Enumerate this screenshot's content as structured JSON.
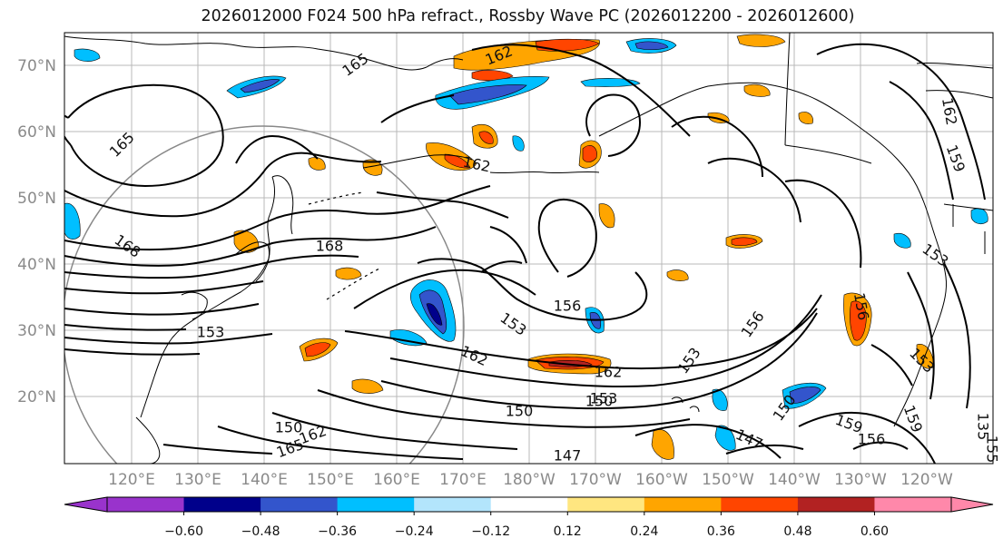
{
  "title": "2026012000 F024 500 hPa refract., Rossby Wave PC (2026012200 - 2026012600)",
  "lat_labels": [
    "70°N",
    "60°N",
    "50°N",
    "40°N",
    "30°N",
    "20°N"
  ],
  "lon_labels": [
    "120°E",
    "130°E",
    "140°E",
    "150°E",
    "160°E",
    "170°E",
    "180°W",
    "170°W",
    "160°W",
    "150°W",
    "140°W",
    "130°W",
    "120°W"
  ],
  "contour_labels": [
    "162",
    "165",
    "165",
    "162",
    "168",
    "168",
    "153",
    "156",
    "153",
    "162",
    "162",
    "153",
    "150",
    "147",
    "150",
    "150",
    "162",
    "165",
    "153",
    "156",
    "159",
    "159",
    "153",
    "156",
    "162",
    "147",
    "150",
    "153",
    "135",
    "155",
    "156",
    "159"
  ],
  "colorbar": {
    "tick_labels": [
      "−0.60",
      "−0.48",
      "−0.36",
      "−0.24",
      "−0.12",
      "0.12",
      "0.24",
      "0.36",
      "0.48",
      "0.60"
    ],
    "colors": [
      "#9933cc",
      "#00008b",
      "#3355cc",
      "#00bfff",
      "#b3e5fc",
      "#ffffff",
      "#ffe680",
      "#ffa500",
      "#ff4500",
      "#b22222",
      "#ff88aa"
    ]
  }
}
